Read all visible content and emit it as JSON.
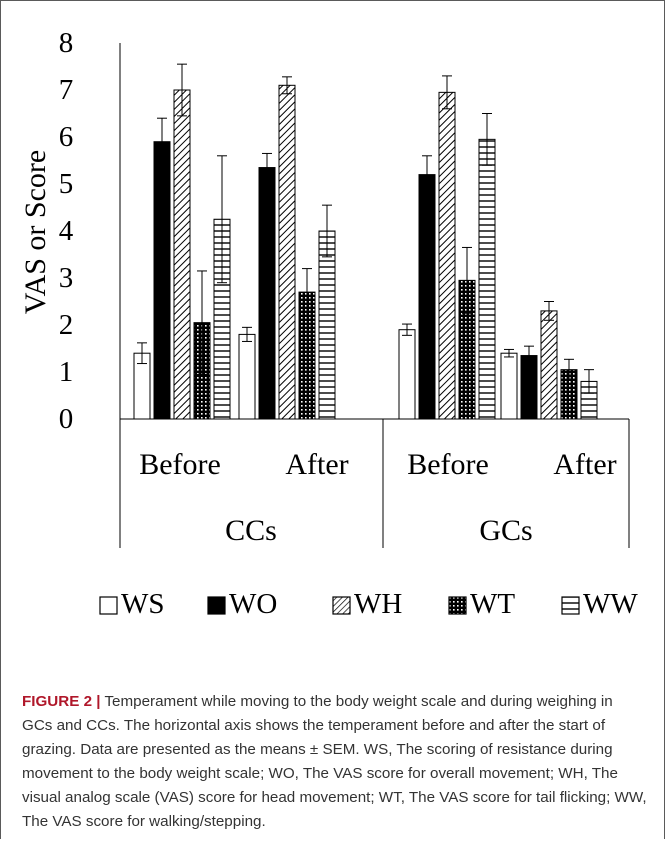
{
  "chart_data": {
    "type": "bar",
    "ylabel": "VAS or Score",
    "ylim": [
      0,
      8
    ],
    "yticks": [
      "0",
      "1",
      "2",
      "3",
      "4",
      "5",
      "6",
      "7",
      "8"
    ],
    "categories": [
      "Before",
      "After",
      "Before",
      "After"
    ],
    "groups": [
      {
        "label": "CCs",
        "categories": [
          "Before",
          "After"
        ]
      },
      {
        "label": "GCs",
        "categories": [
          "Before",
          "After"
        ]
      }
    ],
    "series": [
      {
        "name": "WS",
        "pattern": "white",
        "values": [
          1.4,
          1.8,
          1.9,
          1.4
        ],
        "errors": [
          0.22,
          0.15,
          0.12,
          0.08
        ]
      },
      {
        "name": "WO",
        "pattern": "black",
        "values": [
          5.9,
          5.35,
          5.2,
          1.35
        ],
        "errors": [
          0.5,
          0.3,
          0.4,
          0.2
        ]
      },
      {
        "name": "WH",
        "pattern": "diagonal",
        "values": [
          7.0,
          7.1,
          6.95,
          2.3
        ],
        "errors": [
          0.55,
          0.18,
          0.35,
          0.2
        ]
      },
      {
        "name": "WT",
        "pattern": "dots",
        "values": [
          2.05,
          2.7,
          2.95,
          1.05
        ],
        "errors": [
          1.1,
          0.5,
          0.7,
          0.22
        ]
      },
      {
        "name": "WW",
        "pattern": "hlines",
        "values": [
          4.25,
          4.0,
          5.95,
          0.8
        ],
        "errors": [
          1.35,
          0.55,
          0.55,
          0.25
        ]
      }
    ],
    "legend_position": "bottom",
    "grid": false
  },
  "caption": {
    "lead": "FIGURE 2 |",
    "text": " Temperament while moving to the body weight scale and during weighing in GCs and CCs. The horizontal axis shows the temperament before and after the start of grazing. Data are presented as the means ± SEM. WS, The scoring of resistance during movement to the body weight scale; WO, The VAS score for overall movement; WH, The visual analog scale (VAS) score for head movement; WT, The VAS score for tail flicking; WW, The VAS score for walking/stepping."
  }
}
